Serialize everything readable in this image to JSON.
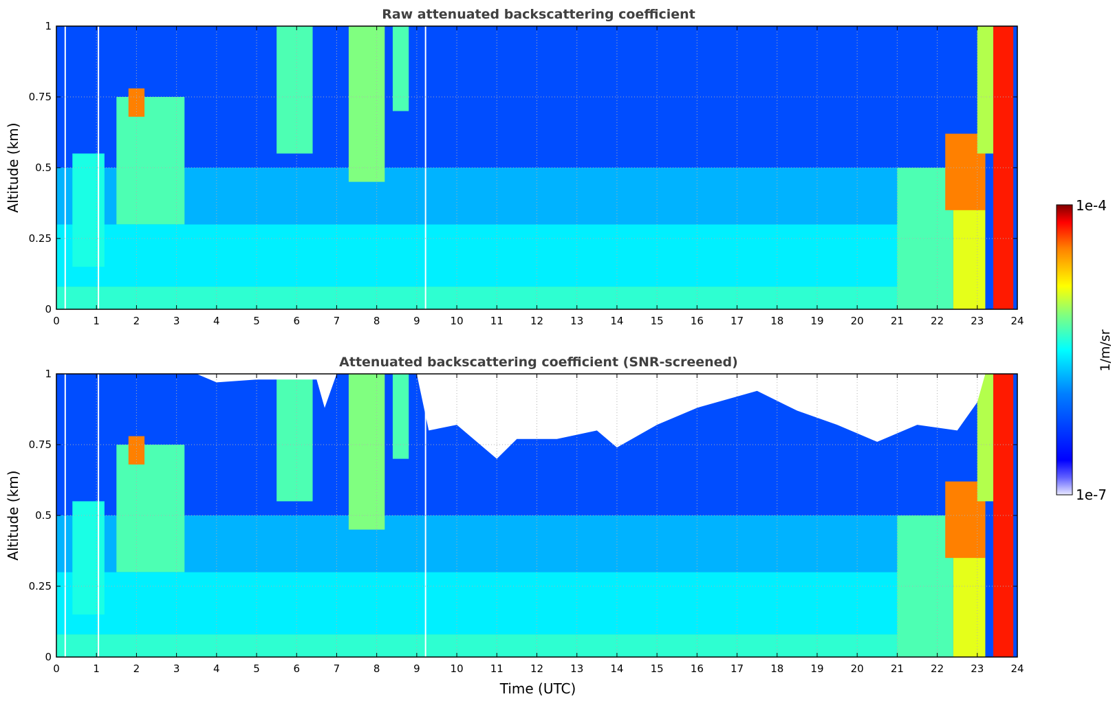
{
  "chart_data": [
    {
      "type": "heatmap",
      "title": "Raw attenuated backscattering coefficient",
      "xlabel": "",
      "ylabel": "Altitude (km)",
      "xlim": [
        0,
        24
      ],
      "ylim": [
        0,
        1
      ],
      "x_ticks": [
        "0",
        "1",
        "2",
        "3",
        "4",
        "5",
        "6",
        "7",
        "8",
        "9",
        "10",
        "11",
        "12",
        "13",
        "14",
        "15",
        "16",
        "17",
        "18",
        "19",
        "20",
        "21",
        "22",
        "23",
        "24"
      ],
      "y_ticks": [
        "0",
        "0.25",
        "0.5",
        "0.75",
        "1"
      ],
      "grid": true,
      "colorscale": "jet",
      "screened": false,
      "features": [
        {
          "x0": 0,
          "x1": 22.3,
          "y0": 0,
          "y1": 0.08,
          "level": 0.42
        },
        {
          "x0": 0,
          "x1": 22.3,
          "y0": 0.08,
          "y1": 0.3,
          "level": 0.36
        },
        {
          "x0": 0,
          "x1": 22.3,
          "y0": 0.3,
          "y1": 0.5,
          "level": 0.3
        },
        {
          "x0": 0,
          "x1": 23.0,
          "y0": 0.5,
          "y1": 1.0,
          "level": 0.2
        },
        {
          "x0": 0.4,
          "x1": 1.2,
          "y0": 0.15,
          "y1": 0.55,
          "level": 0.4
        },
        {
          "x0": 1.5,
          "x1": 3.2,
          "y0": 0.3,
          "y1": 0.75,
          "level": 0.45
        },
        {
          "x0": 1.8,
          "x1": 2.2,
          "y0": 0.68,
          "y1": 0.78,
          "level": 0.75
        },
        {
          "x0": 5.5,
          "x1": 6.4,
          "y0": 0.55,
          "y1": 1.0,
          "level": 0.45
        },
        {
          "x0": 7.3,
          "x1": 8.2,
          "y0": 0.45,
          "y1": 1.0,
          "level": 0.5
        },
        {
          "x0": 8.4,
          "x1": 8.8,
          "y0": 0.7,
          "y1": 1.0,
          "level": 0.45
        },
        {
          "x0": 21.0,
          "x1": 22.4,
          "y0": 0,
          "y1": 0.5,
          "level": 0.45
        },
        {
          "x0": 22.4,
          "x1": 23.2,
          "y0": 0,
          "y1": 0.55,
          "level": 0.6
        },
        {
          "x0": 22.2,
          "x1": 23.2,
          "y0": 0.35,
          "y1": 0.62,
          "level": 0.75
        },
        {
          "x0": 23.0,
          "x1": 23.4,
          "y0": 0.55,
          "y1": 1.0,
          "level": 0.55
        },
        {
          "x0": 23.4,
          "x1": 23.9,
          "y0": 0,
          "y1": 1.0,
          "level": 0.85
        }
      ],
      "gaps_x": [
        0.22,
        1.05,
        9.22
      ]
    },
    {
      "type": "heatmap",
      "title": "Attenuated backscattering coefficient (SNR-screened)",
      "xlabel": "Time (UTC)",
      "ylabel": "Altitude (km)",
      "xlim": [
        0,
        24
      ],
      "ylim": [
        0,
        1
      ],
      "x_ticks": [
        "0",
        "1",
        "2",
        "3",
        "4",
        "5",
        "6",
        "7",
        "8",
        "9",
        "10",
        "11",
        "12",
        "13",
        "14",
        "15",
        "16",
        "17",
        "18",
        "19",
        "20",
        "21",
        "22",
        "23",
        "24"
      ],
      "y_ticks": [
        "0",
        "0.25",
        "0.5",
        "0.75",
        "1"
      ],
      "grid": true,
      "colorscale": "jet",
      "screened": true,
      "features": [
        {
          "x0": 0,
          "x1": 22.3,
          "y0": 0,
          "y1": 0.08,
          "level": 0.42
        },
        {
          "x0": 0,
          "x1": 22.3,
          "y0": 0.08,
          "y1": 0.3,
          "level": 0.36
        },
        {
          "x0": 0,
          "x1": 22.3,
          "y0": 0.3,
          "y1": 0.5,
          "level": 0.3
        },
        {
          "x0": 0,
          "x1": 23.0,
          "y0": 0.5,
          "y1": 1.0,
          "level": 0.2
        },
        {
          "x0": 0.4,
          "x1": 1.2,
          "y0": 0.15,
          "y1": 0.55,
          "level": 0.4
        },
        {
          "x0": 1.5,
          "x1": 3.2,
          "y0": 0.3,
          "y1": 0.75,
          "level": 0.45
        },
        {
          "x0": 1.8,
          "x1": 2.2,
          "y0": 0.68,
          "y1": 0.78,
          "level": 0.75
        },
        {
          "x0": 5.5,
          "x1": 6.4,
          "y0": 0.55,
          "y1": 1.0,
          "level": 0.45
        },
        {
          "x0": 7.3,
          "x1": 8.2,
          "y0": 0.45,
          "y1": 1.0,
          "level": 0.5
        },
        {
          "x0": 8.4,
          "x1": 8.8,
          "y0": 0.7,
          "y1": 1.0,
          "level": 0.45
        },
        {
          "x0": 21.0,
          "x1": 22.4,
          "y0": 0,
          "y1": 0.5,
          "level": 0.45
        },
        {
          "x0": 22.4,
          "x1": 23.2,
          "y0": 0,
          "y1": 0.55,
          "level": 0.6
        },
        {
          "x0": 22.2,
          "x1": 23.2,
          "y0": 0.35,
          "y1": 0.62,
          "level": 0.75
        },
        {
          "x0": 23.0,
          "x1": 23.4,
          "y0": 0.55,
          "y1": 1.0,
          "level": 0.55
        },
        {
          "x0": 23.4,
          "x1": 23.9,
          "y0": 0,
          "y1": 1.0,
          "level": 0.85
        }
      ],
      "gaps_x": [
        0.22,
        1.05,
        9.22
      ],
      "screen_boundary": [
        {
          "x": 0,
          "y": 1.0
        },
        {
          "x": 3.5,
          "y": 1.0
        },
        {
          "x": 4.0,
          "y": 0.97
        },
        {
          "x": 5.0,
          "y": 0.98
        },
        {
          "x": 6.5,
          "y": 0.98
        },
        {
          "x": 6.7,
          "y": 0.88
        },
        {
          "x": 7.0,
          "y": 1.0
        },
        {
          "x": 9.0,
          "y": 1.0
        },
        {
          "x": 9.3,
          "y": 0.8
        },
        {
          "x": 10.0,
          "y": 0.82
        },
        {
          "x": 11.0,
          "y": 0.7
        },
        {
          "x": 11.5,
          "y": 0.77
        },
        {
          "x": 12.5,
          "y": 0.77
        },
        {
          "x": 13.5,
          "y": 0.8
        },
        {
          "x": 14.0,
          "y": 0.74
        },
        {
          "x": 15.0,
          "y": 0.82
        },
        {
          "x": 16.0,
          "y": 0.88
        },
        {
          "x": 17.5,
          "y": 0.94
        },
        {
          "x": 18.5,
          "y": 0.87
        },
        {
          "x": 19.5,
          "y": 0.82
        },
        {
          "x": 20.5,
          "y": 0.76
        },
        {
          "x": 21.5,
          "y": 0.82
        },
        {
          "x": 22.5,
          "y": 0.8
        },
        {
          "x": 23.0,
          "y": 0.9
        },
        {
          "x": 23.2,
          "y": 1.0
        }
      ]
    }
  ],
  "colorbar": {
    "label": "1/m/sr",
    "min_label": "1e-7",
    "max_label": "1e-4",
    "scale": "log",
    "range": [
      1e-07,
      0.0001
    ]
  }
}
